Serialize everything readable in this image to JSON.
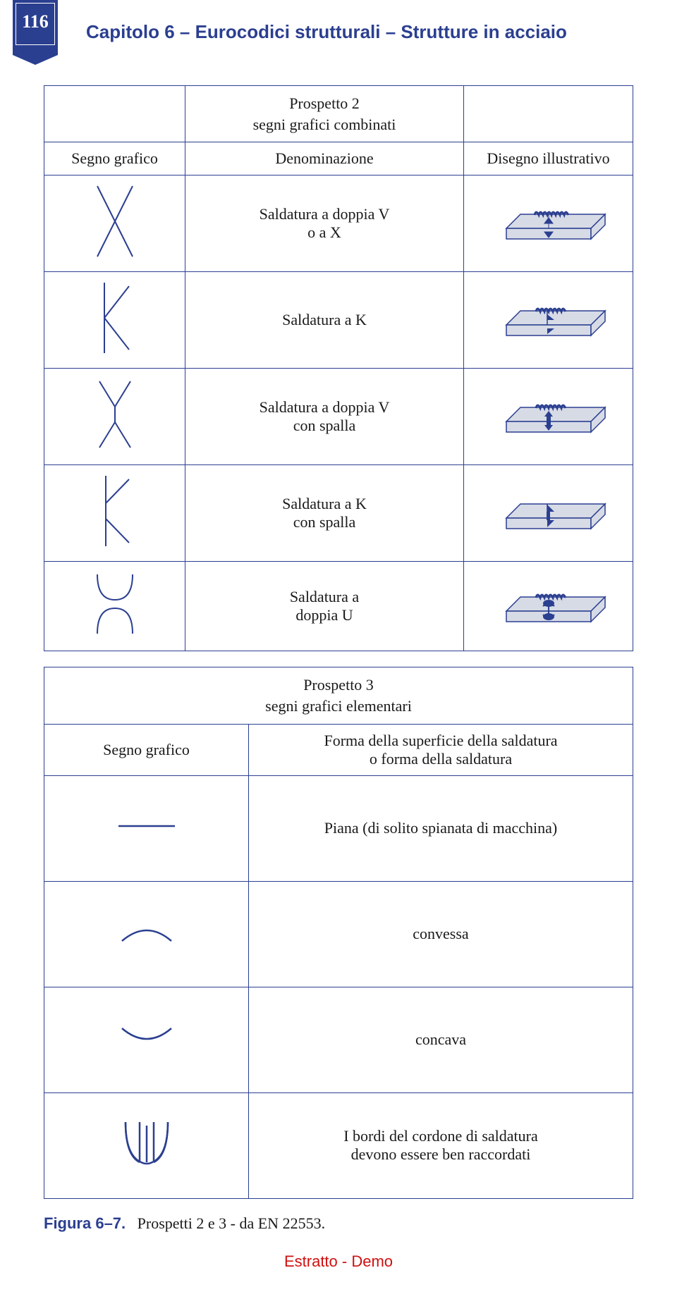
{
  "page_number": "116",
  "chapter_title": "Capitolo 6 – Eurocodici strutturali – Strutture in acciaio",
  "colors": {
    "brand": "#2b3f90",
    "text": "#1a1a1a",
    "footer": "#d01010",
    "plate_fill": "#d7dbe6",
    "plate_stroke": "#2b3f90",
    "weld_fill": "#2b3f90"
  },
  "table1": {
    "title_l1": "Prospetto 2",
    "title_l2": "segni grafici combinati",
    "head_col1": "Segno grafico",
    "head_col2": "Denominazione",
    "head_col3": "Disegno illustrativo",
    "rows": [
      {
        "label": "Saldatura a doppia V\no a X"
      },
      {
        "label": "Saldatura a K"
      },
      {
        "label": "Saldatura a doppia V\ncon spalla"
      },
      {
        "label": "Saldatura a K\ncon spalla"
      },
      {
        "label": "Saldatura a\ndoppia U"
      }
    ]
  },
  "table2": {
    "title_l1": "Prospetto 3",
    "title_l2": "segni grafici elementari",
    "head_col1": "Segno grafico",
    "head_col2": "Forma della superficie della saldatura\no forma della saldatura",
    "rows": [
      {
        "label": "Piana (di solito spianata di macchina)"
      },
      {
        "label": "convessa"
      },
      {
        "label": "concava"
      },
      {
        "label": "I bordi del cordone di saldatura\ndevono essere ben raccordati"
      }
    ]
  },
  "figure_caption_num": "Figura 6–7.",
  "figure_caption_text": "Prospetti 2 e 3 - da EN 22553.",
  "footer": "Estratto - Demo"
}
